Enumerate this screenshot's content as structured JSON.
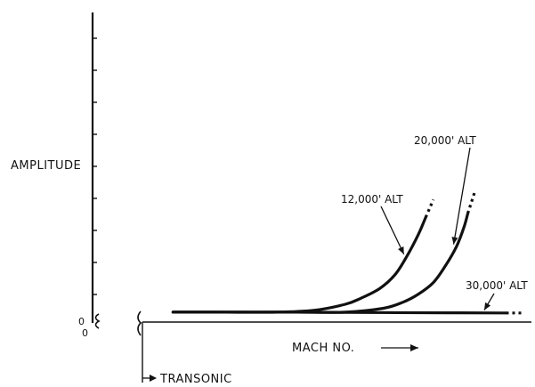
{
  "colors": {
    "ink": "#111111",
    "background": "#ffffff"
  },
  "chart_data": {
    "type": "line",
    "title": "",
    "xlabel": "MACH NO.",
    "ylabel": "AMPLITUDE",
    "x_axis_arrow": "right-arrow",
    "y_ticks_labeled": false,
    "origin_labels": {
      "y": "0",
      "x": "0"
    },
    "axis_break": true,
    "grid": false,
    "legend": "none",
    "xlim": [
      0,
      100
    ],
    "ylim": [
      0,
      100
    ],
    "transonic_marker": {
      "x": 0,
      "label": "TRANSONIC"
    },
    "series": [
      {
        "name": "12,000' ALT",
        "x": [
          8,
          20,
          35,
          45,
          53,
          57,
          62,
          66,
          69,
          72,
          74
        ],
        "y": [
          5,
          5,
          5,
          6,
          9,
          12,
          17,
          24,
          33,
          44,
          53
        ],
        "dotted_extension": [
          [
            74,
            53
          ],
          [
            76,
            62
          ]
        ]
      },
      {
        "name": "20,000' ALT",
        "x": [
          8,
          40,
          53,
          63,
          68,
          72,
          76,
          79,
          82,
          84,
          85
        ],
        "y": [
          5,
          5,
          5,
          7,
          10,
          14,
          20,
          28,
          38,
          48,
          55
        ],
        "dotted_extension": [
          [
            85,
            55
          ],
          [
            87,
            67
          ]
        ]
      },
      {
        "name": "30,000' ALT",
        "x": [
          8,
          40,
          60,
          80,
          95
        ],
        "y": [
          5,
          5,
          4.8,
          4.7,
          4.6
        ],
        "dotted_extension": [
          [
            95,
            4.6
          ],
          [
            99,
            4.6
          ]
        ]
      }
    ],
    "annotations": [
      {
        "text": "12,000' ALT",
        "series": "12,000' ALT",
        "arrow_to": [
          69,
          33
        ]
      },
      {
        "text": "20,000' ALT",
        "series": "20,000' ALT",
        "arrow_to": [
          82,
          38
        ]
      },
      {
        "text": "30,000' ALT",
        "series": "30,000' ALT",
        "arrow_to": [
          90,
          4.7
        ]
      }
    ]
  }
}
